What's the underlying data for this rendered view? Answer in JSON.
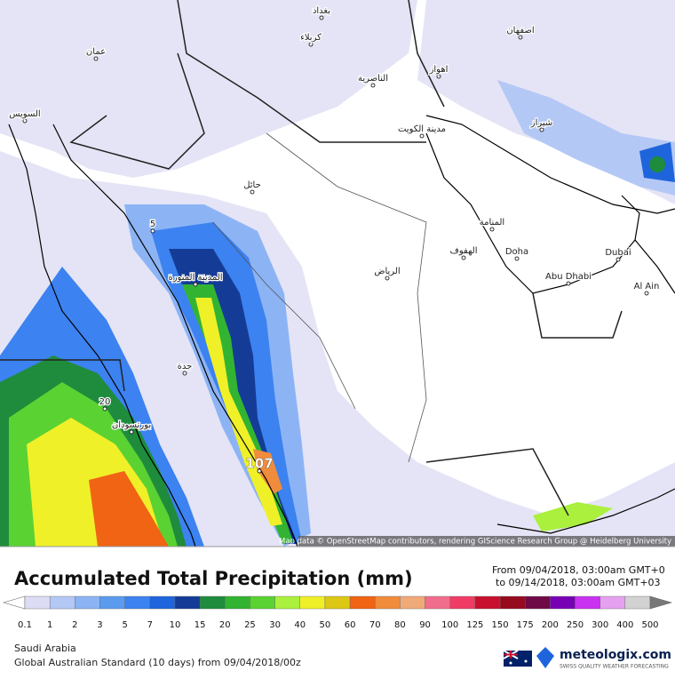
{
  "map": {
    "labels": [
      "بغداد",
      "كربلاء",
      "الناصرية",
      "اهواز",
      "اصفهان",
      "شيراز",
      "مدينة الكويت",
      "حائل",
      "المدينة المنورة",
      "الرياض",
      "الهفوف",
      "المنامة",
      "Doha",
      "Dubai",
      "Abu Dhabi",
      "Al Ain",
      "جدة",
      "بورتسودان",
      "عمان",
      "السويس",
      "107",
      "5",
      "20"
    ],
    "attribution": "Map data © OpenStreetMap contributors, rendering GIScience Research Group @ Heidelberg University"
  },
  "header": {
    "title": "Accumulated Total Precipitation (mm)",
    "from": "From 09/04/2018, 03:00am GMT+0",
    "to": "to 09/14/2018, 03:00am GMT+03"
  },
  "legend": {
    "labels": [
      "0.1",
      "1",
      "2",
      "3",
      "5",
      "7",
      "10",
      "15",
      "20",
      "25",
      "30",
      "40",
      "50",
      "60",
      "70",
      "80",
      "90",
      "100",
      "125",
      "150",
      "175",
      "200",
      "250",
      "300",
      "400",
      "500"
    ],
    "colors": [
      "#dcdcf5",
      "#b4c8f5",
      "#8cb4f5",
      "#5a9bf0",
      "#3c82f0",
      "#1e64dc",
      "#143c96",
      "#1e8c3c",
      "#32b432",
      "#5ad232",
      "#aaf03c",
      "#f0f028",
      "#dcc814",
      "#f06414",
      "#f08c3c",
      "#f0aa78",
      "#f06e8c",
      "#f03c64",
      "#c8102e",
      "#960a1e",
      "#6e0a46",
      "#7800b4",
      "#c832f0",
      "#e6a0f0",
      "#d2d2d2"
    ]
  },
  "footer": {
    "region": "Saudi Arabia",
    "model": "Global Australian Standard (10 days) from 09/04/2018/00z",
    "brand": "meteologix.com",
    "tagline": "SWISS QUALITY WEATHER FORECASTING"
  }
}
